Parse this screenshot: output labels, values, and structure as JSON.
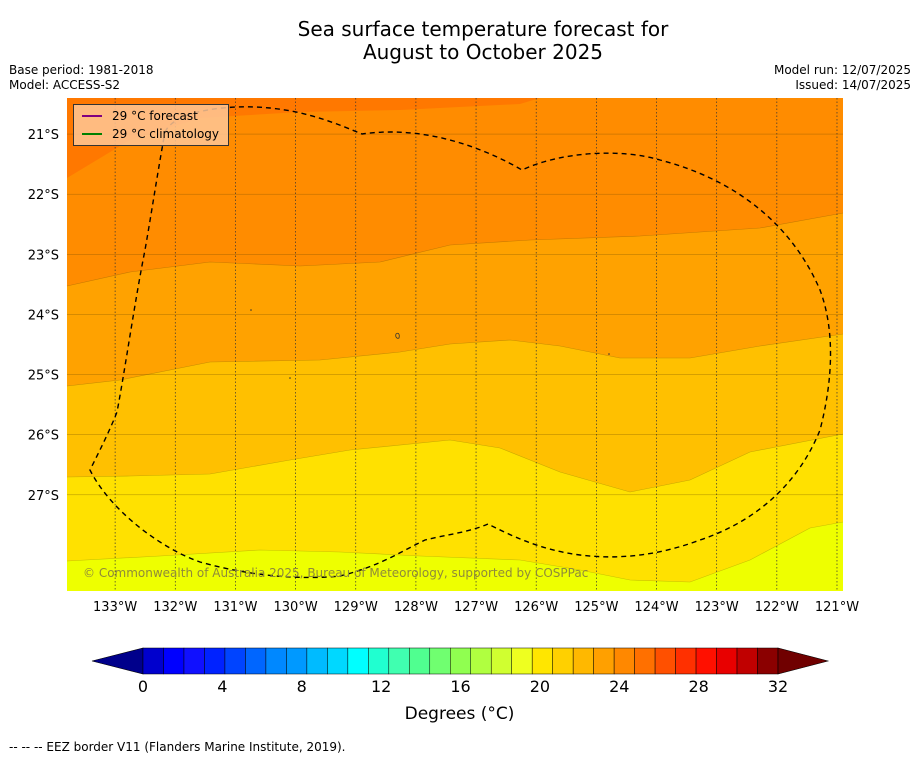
{
  "header": {
    "title_line1": "Sea surface temperature forecast for",
    "title_line2": "August to October 2025",
    "base_period": "Base period: 1981-2018",
    "model": "Model: ACCESS-S2",
    "model_run": "Model run: 12/07/2025",
    "issued": "Issued: 14/07/2025"
  },
  "map": {
    "lon_labels": [
      "133°W",
      "132°W",
      "131°W",
      "130°W",
      "129°W",
      "128°W",
      "127°W",
      "126°W",
      "125°W",
      "124°W",
      "123°W",
      "122°W",
      "121°W"
    ],
    "lat_labels": [
      "21°S",
      "22°S",
      "23°S",
      "24°S",
      "25°S",
      "26°S",
      "27°S"
    ],
    "lon_range": [
      -133.8,
      -120.9
    ],
    "lat_range": [
      -28.6,
      -20.4
    ],
    "copyright": "© Commonwealth of Australia 2025, Bureau of Meteorology, supported by COSPPac"
  },
  "legend": {
    "forecast_label": "29 °C  forecast",
    "climatology_label": "29 °C  climatology",
    "forecast_color": "#800080",
    "climatology_color": "#008000"
  },
  "colorbar": {
    "title": "Degrees (°C)",
    "ticks": [
      "0",
      "4",
      "8",
      "12",
      "16",
      "20",
      "24",
      "28",
      "32"
    ],
    "colors": [
      "#00008b",
      "#0000cd",
      "#0000ff",
      "#1010ff",
      "#0022ff",
      "#0044ff",
      "#0066ff",
      "#0088ff",
      "#0099ff",
      "#00bbff",
      "#00d8ff",
      "#00ffff",
      "#20ffd0",
      "#40ffb0",
      "#50ff90",
      "#70ff70",
      "#90ff50",
      "#b0ff40",
      "#d0ff30",
      "#eeff20",
      "#ffe600",
      "#ffd000",
      "#ffb800",
      "#ffa000",
      "#ff8800",
      "#ff7000",
      "#ff5000",
      "#ff3000",
      "#ff1000",
      "#e80000",
      "#c00000",
      "#8b0000",
      "#700000"
    ]
  },
  "footer": "--  --  -- EEZ border V11 (Flanders Marine Institute, 2019)."
}
